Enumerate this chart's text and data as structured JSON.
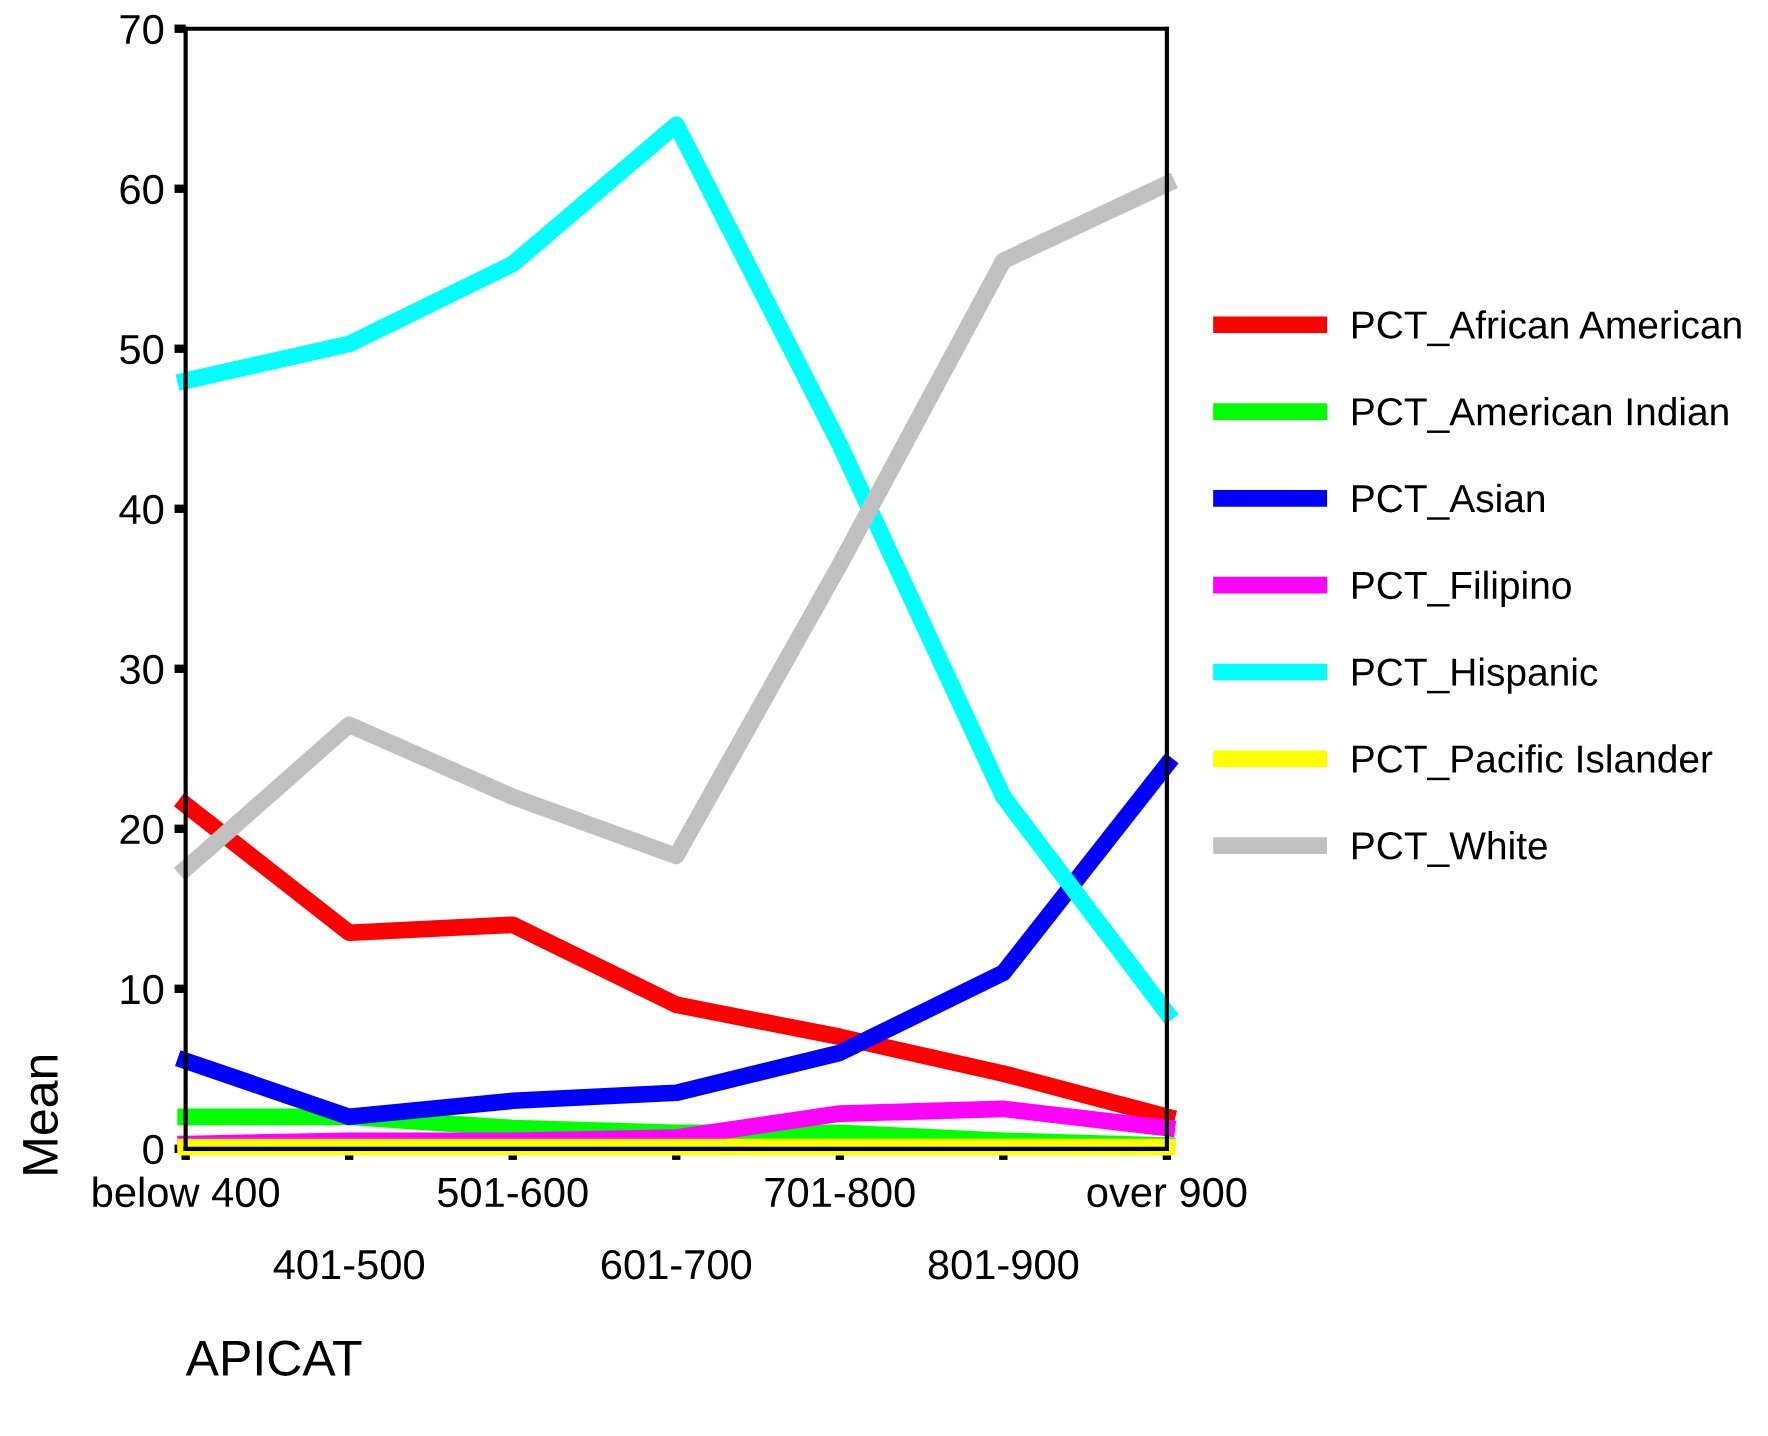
{
  "chart_data": {
    "type": "line",
    "xlabel": "APICAT",
    "ylabel": "Mean",
    "categories": [
      "below 400",
      "401-500",
      "501-600",
      "601-700",
      "701-800",
      "801-900",
      "over 900"
    ],
    "ylim": [
      0,
      70
    ],
    "yticks": [
      0,
      10,
      20,
      30,
      40,
      50,
      60,
      70
    ],
    "grid": false,
    "legend": "right",
    "line_style": "solid",
    "marker": "none",
    "series": [
      {
        "name": "PCT_African American",
        "color": "#ff0000",
        "values": [
          21.5,
          13.5,
          14,
          9,
          7,
          4.7,
          2
        ]
      },
      {
        "name": "PCT_American Indian",
        "color": "#00ff00",
        "values": [
          2,
          2,
          1.3,
          1,
          1,
          0.5,
          0.2
        ]
      },
      {
        "name": "PCT_Asian",
        "color": "#0000ff",
        "values": [
          5.5,
          2,
          3,
          3.5,
          6,
          11,
          24
        ]
      },
      {
        "name": "PCT_Filipino",
        "color": "#ff00ff",
        "values": [
          0.3,
          0.5,
          0.5,
          0.7,
          2.2,
          2.5,
          1.3
        ]
      },
      {
        "name": "PCT_Hispanic",
        "color": "#00ffff",
        "values": [
          48,
          50.3,
          55.3,
          64,
          44,
          22,
          8.5
        ]
      },
      {
        "name": "PCT_Pacific Islander",
        "color": "#ffff00",
        "values": [
          0.1,
          0.1,
          0.1,
          0.1,
          0.1,
          0.1,
          0.1
        ]
      },
      {
        "name": "PCT_White",
        "color": "#c0c0c0",
        "values": [
          17.5,
          26.5,
          22,
          18.3,
          36.5,
          55.5,
          60.3
        ]
      }
    ]
  }
}
